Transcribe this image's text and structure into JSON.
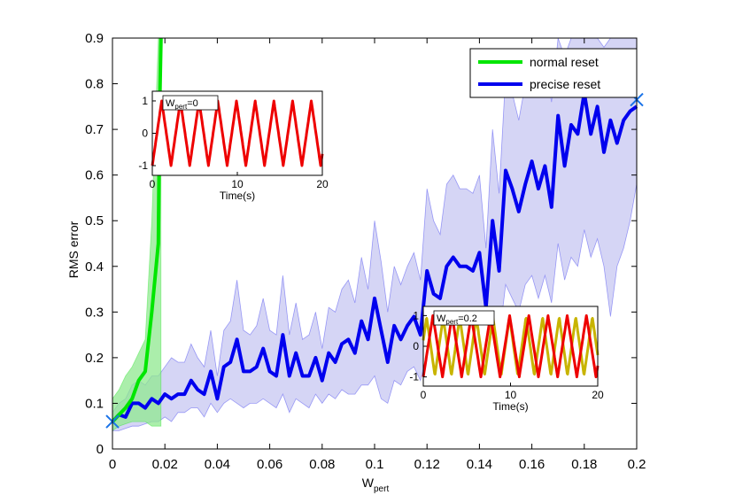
{
  "chart_data": [
    {
      "type": "line",
      "title": "",
      "xlabel": "W",
      "xlabel_sub": "pert",
      "ylabel": "RMS error",
      "xlim": [
        0,
        0.2
      ],
      "ylim": [
        0,
        0.9
      ],
      "x_ticks": [
        "0",
        "0.02",
        "0.04",
        "0.06",
        "0.08",
        "0.1",
        "0.12",
        "0.14",
        "0.16",
        "0.18",
        "0.2"
      ],
      "y_ticks": [
        "0",
        "0.1",
        "0.2",
        "0.3",
        "0.4",
        "0.5",
        "0.6",
        "0.7",
        "0.8",
        "0.9"
      ],
      "grid": false,
      "legend_position": "top-right",
      "series": [
        {
          "name": "normal reset",
          "color": "#00e600",
          "band_color": "#8fe88f",
          "x": [
            0,
            0.0025,
            0.005,
            0.0075,
            0.01,
            0.0125,
            0.015,
            0.0175,
            0.018,
            0.0185
          ],
          "y": [
            0.06,
            0.075,
            0.09,
            0.11,
            0.15,
            0.17,
            0.3,
            0.45,
            0.75,
            0.9
          ],
          "lower": [
            0.04,
            0.05,
            0.055,
            0.06,
            0.06,
            0.06,
            0.05,
            0.05,
            0.05,
            0.05
          ],
          "upper": [
            0.11,
            0.13,
            0.16,
            0.18,
            0.21,
            0.24,
            0.5,
            0.9,
            0.9,
            0.9
          ]
        },
        {
          "name": "precise reset",
          "color": "#0000ee",
          "band_color": "#c7c7f2",
          "x": [
            0,
            0.0025,
            0.005,
            0.0075,
            0.01,
            0.0125,
            0.015,
            0.0175,
            0.02,
            0.0225,
            0.025,
            0.0275,
            0.03,
            0.0325,
            0.035,
            0.0375,
            0.04,
            0.0425,
            0.045,
            0.0475,
            0.05,
            0.0525,
            0.055,
            0.0575,
            0.06,
            0.0625,
            0.065,
            0.0675,
            0.07,
            0.0725,
            0.075,
            0.0775,
            0.08,
            0.0825,
            0.085,
            0.0875,
            0.09,
            0.0925,
            0.095,
            0.0975,
            0.1,
            0.1025,
            0.105,
            0.1075,
            0.11,
            0.1125,
            0.115,
            0.1175,
            0.12,
            0.1225,
            0.125,
            0.1275,
            0.13,
            0.1325,
            0.135,
            0.1375,
            0.14,
            0.1425,
            0.145,
            0.1475,
            0.15,
            0.1525,
            0.155,
            0.1575,
            0.16,
            0.1625,
            0.165,
            0.1675,
            0.17,
            0.1725,
            0.175,
            0.1775,
            0.18,
            0.1825,
            0.185,
            0.1875,
            0.19,
            0.1925,
            0.195,
            0.1975,
            0.2
          ],
          "y": [
            0.06,
            0.075,
            0.07,
            0.1,
            0.1,
            0.09,
            0.11,
            0.1,
            0.12,
            0.11,
            0.12,
            0.12,
            0.15,
            0.13,
            0.12,
            0.17,
            0.11,
            0.18,
            0.19,
            0.24,
            0.17,
            0.17,
            0.18,
            0.22,
            0.17,
            0.16,
            0.25,
            0.16,
            0.21,
            0.16,
            0.16,
            0.2,
            0.15,
            0.21,
            0.19,
            0.23,
            0.24,
            0.21,
            0.28,
            0.24,
            0.33,
            0.26,
            0.19,
            0.27,
            0.24,
            0.27,
            0.29,
            0.25,
            0.39,
            0.34,
            0.33,
            0.4,
            0.42,
            0.4,
            0.4,
            0.39,
            0.43,
            0.31,
            0.5,
            0.39,
            0.61,
            0.57,
            0.52,
            0.58,
            0.63,
            0.57,
            0.62,
            0.53,
            0.73,
            0.62,
            0.71,
            0.69,
            0.78,
            0.69,
            0.75,
            0.65,
            0.72,
            0.67,
            0.72,
            0.74,
            0.75
          ],
          "lower": [
            0.04,
            0.04,
            0.045,
            0.05,
            0.05,
            0.055,
            0.06,
            0.06,
            0.07,
            0.06,
            0.08,
            0.08,
            0.09,
            0.09,
            0.07,
            0.1,
            0.08,
            0.1,
            0.11,
            0.1,
            0.09,
            0.1,
            0.1,
            0.11,
            0.1,
            0.09,
            0.12,
            0.08,
            0.11,
            0.1,
            0.09,
            0.12,
            0.1,
            0.12,
            0.11,
            0.13,
            0.12,
            0.12,
            0.14,
            0.14,
            0.16,
            0.11,
            0.1,
            0.15,
            0.14,
            0.17,
            0.18,
            0.15,
            0.21,
            0.19,
            0.2,
            0.22,
            0.24,
            0.23,
            0.24,
            0.22,
            0.25,
            0.2,
            0.3,
            0.24,
            0.36,
            0.33,
            0.3,
            0.36,
            0.38,
            0.33,
            0.38,
            0.32,
            0.45,
            0.37,
            0.42,
            0.4,
            0.48,
            0.42,
            0.46,
            0.4,
            0.29,
            0.4,
            0.44,
            0.5,
            0.58
          ],
          "upper": [
            0.08,
            0.1,
            0.11,
            0.14,
            0.15,
            0.14,
            0.16,
            0.16,
            0.18,
            0.2,
            0.19,
            0.19,
            0.23,
            0.2,
            0.18,
            0.26,
            0.16,
            0.26,
            0.28,
            0.37,
            0.26,
            0.25,
            0.27,
            0.33,
            0.26,
            0.25,
            0.38,
            0.25,
            0.32,
            0.24,
            0.25,
            0.3,
            0.22,
            0.31,
            0.3,
            0.35,
            0.37,
            0.32,
            0.42,
            0.35,
            0.5,
            0.41,
            0.3,
            0.4,
            0.36,
            0.4,
            0.43,
            0.37,
            0.57,
            0.5,
            0.47,
            0.58,
            0.6,
            0.57,
            0.57,
            0.56,
            0.6,
            0.44,
            0.7,
            0.56,
            0.82,
            0.78,
            0.72,
            0.8,
            0.86,
            0.79,
            0.85,
            0.76,
            0.9,
            0.86,
            0.9,
            0.9,
            0.9,
            0.9,
            0.9,
            0.88,
            0.9,
            0.9,
            0.9,
            0.9,
            0.9
          ]
        }
      ],
      "markers": [
        {
          "x": 0,
          "y": 0.06,
          "symbol": "x",
          "color": "#1a73e8"
        },
        {
          "x": 0.2,
          "y": 0.765,
          "symbol": "x",
          "color": "#1a73e8"
        }
      ]
    },
    {
      "type": "line",
      "inset": "top-left",
      "annotation": "W",
      "annotation_sub": "pert",
      "annotation_value": "=0",
      "xlabel": "Time(s)",
      "xlim": [
        0,
        20
      ],
      "ylim": [
        -1.3,
        1.3
      ],
      "x_ticks": [
        "0",
        "10",
        "20"
      ],
      "y_ticks": [
        "-1",
        "0",
        "1"
      ],
      "series": [
        {
          "color": "#ee0000",
          "period": 2.2,
          "phase": 0.0,
          "amplitude": 1.0
        }
      ]
    },
    {
      "type": "line",
      "inset": "bottom-right",
      "annotation": "W",
      "annotation_sub": "pert",
      "annotation_value": "=0.2",
      "xlabel": "Time(s)",
      "xlim": [
        0,
        20
      ],
      "ylim": [
        -1.3,
        1.3
      ],
      "x_ticks": [
        "0",
        "10",
        "20"
      ],
      "y_ticks": [
        "-1",
        "0",
        "1"
      ],
      "series": [
        {
          "color": "#c8b400",
          "period": 1.9,
          "phase": 0.3,
          "amplitude": 0.95
        },
        {
          "color": "#ee0000",
          "period": 2.2,
          "phase": 0.0,
          "amplitude": 1.0
        }
      ]
    }
  ]
}
